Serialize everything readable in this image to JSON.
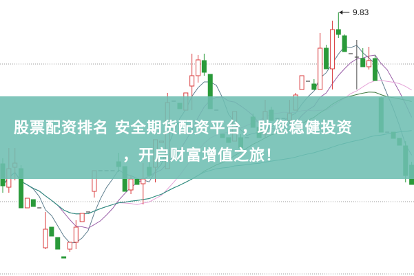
{
  "banner": {
    "line1": "股票配资排名  安全期货配资平台，助您稳健投资",
    "line2": "，开启财富增值之旅！",
    "color": "#6ebeb2"
  },
  "chart_data": {
    "type": "candlestick",
    "title": "",
    "annotations": [
      {
        "label": "9.83",
        "type": "high-marker"
      }
    ],
    "grid": "dotted horizontal",
    "up_color": "#d9383a",
    "down_color": "#2a9a3a",
    "ma_colors": [
      "#5f7f8f",
      "#9a5fa8",
      "#e6a3d8",
      "#3f7a3f",
      "#2e8f8a"
    ],
    "ma_periods": [
      5,
      10,
      20,
      30,
      60
    ],
    "candles": [
      [
        7.63,
        7.71,
        7.21,
        7.31
      ],
      [
        7.29,
        7.86,
        7.21,
        7.56
      ],
      [
        7.58,
        7.86,
        7.39,
        7.64
      ],
      [
        7.56,
        7.61,
        6.99,
        6.99
      ],
      [
        6.99,
        7.13,
        6.99,
        7.13
      ],
      [
        7.11,
        7.11,
        7.01,
        7.01
      ],
      [
        6.99,
        6.99,
        6.99,
        6.99
      ],
      [
        6.41,
        6.93,
        6.39,
        6.68
      ],
      [
        6.71,
        6.71,
        6.58,
        6.58
      ],
      [
        6.56,
        6.56,
        6.39,
        6.39
      ],
      [
        6.28,
        6.28,
        6.26,
        6.26
      ],
      [
        6.39,
        6.49,
        6.35,
        6.49
      ],
      [
        6.49,
        6.81,
        6.39,
        6.71
      ],
      [
        6.79,
        6.91,
        6.79,
        6.91
      ],
      [
        6.93,
        6.93,
        6.93,
        6.93
      ],
      [
        7.23,
        7.53,
        7.14,
        7.53
      ],
      [
        7.53,
        7.53,
        7.53,
        7.53
      ],
      [
        7.53,
        7.53,
        7.53,
        7.53
      ],
      [
        7.53,
        7.53,
        7.53,
        7.53
      ],
      [
        7.66,
        7.79,
        7.51,
        7.59
      ],
      [
        7.59,
        7.59,
        7.23,
        7.23
      ],
      [
        7.25,
        7.46,
        7.19,
        7.41
      ],
      [
        7.41,
        7.41,
        7.33,
        7.33
      ],
      [
        7.34,
        7.64,
        7.04,
        7.41
      ],
      [
        7.58,
        7.66,
        7.43,
        7.46
      ],
      [
        7.58,
        7.98,
        7.36,
        7.98
      ],
      [
        7.94,
        7.96,
        7.94,
        7.96
      ],
      [
        7.56,
        8.66,
        7.56,
        8.52
      ],
      [
        8.54,
        8.54,
        8.54,
        8.54
      ],
      [
        8.51,
        8.51,
        8.43,
        8.43
      ],
      [
        8.41,
        8.66,
        8.41,
        8.66
      ],
      [
        8.76,
        9.23,
        8.41,
        8.91
      ],
      [
        8.91,
        9.21,
        8.81,
        9.14
      ],
      [
        9.13,
        9.23,
        8.91,
        8.96
      ],
      [
        8.93,
        8.93,
        8.43,
        8.43
      ],
      [
        8.41,
        8.41,
        8.41,
        8.41
      ],
      [
        8.06,
        8.06,
        8.01,
        8.01
      ],
      [
        8.01,
        8.01,
        7.94,
        7.94
      ],
      [
        7.96,
        8.39,
        7.96,
        8.39
      ],
      [
        8.01,
        8.06,
        7.86,
        7.86
      ],
      [
        8.01,
        8.01,
        8.01,
        8.01
      ],
      [
        8.31,
        8.36,
        8.16,
        8.16
      ],
      [
        8.16,
        8.16,
        8.01,
        8.01
      ],
      [
        8.06,
        8.56,
        8.01,
        8.39
      ],
      [
        8.41,
        8.46,
        8.26,
        8.26
      ],
      [
        8.29,
        8.29,
        8.29,
        8.29
      ],
      [
        8.29,
        8.29,
        8.29,
        8.29
      ],
      [
        8.26,
        8.56,
        8.21,
        8.36
      ],
      [
        8.41,
        8.66,
        8.41,
        8.63
      ],
      [
        8.71,
        8.91,
        8.71,
        8.91
      ],
      [
        8.83,
        8.83,
        8.83,
        8.83
      ],
      [
        8.79,
        8.86,
        8.71,
        8.71
      ],
      [
        8.71,
        9.53,
        8.71,
        9.31
      ],
      [
        9.31,
        9.36,
        9.01,
        9.01
      ],
      [
        9.01,
        9.71,
        8.71,
        9.58
      ],
      [
        9.58,
        9.83,
        9.46,
        9.51
      ],
      [
        9.49,
        9.51,
        9.26,
        9.26
      ],
      [
        9.23,
        9.23,
        9.23,
        9.23
      ],
      [
        9.18,
        9.43,
        8.71,
        9.18
      ],
      [
        9.16,
        9.31,
        9.04,
        9.04
      ],
      [
        9.04,
        9.33,
        9.0,
        9.13
      ],
      [
        9.16,
        9.21,
        8.84,
        8.84
      ],
      [
        8.59,
        8.61,
        8.09,
        8.09
      ],
      [
        8.09,
        8.09,
        8.09,
        8.09
      ],
      [
        8.09,
        8.09,
        8.0,
        8.0
      ],
      [
        8.0,
        8.0,
        7.9,
        7.9
      ],
      [
        7.89,
        7.96,
        7.36,
        7.46
      ],
      [
        7.61,
        7.66,
        7.33,
        7.33
      ]
    ]
  }
}
